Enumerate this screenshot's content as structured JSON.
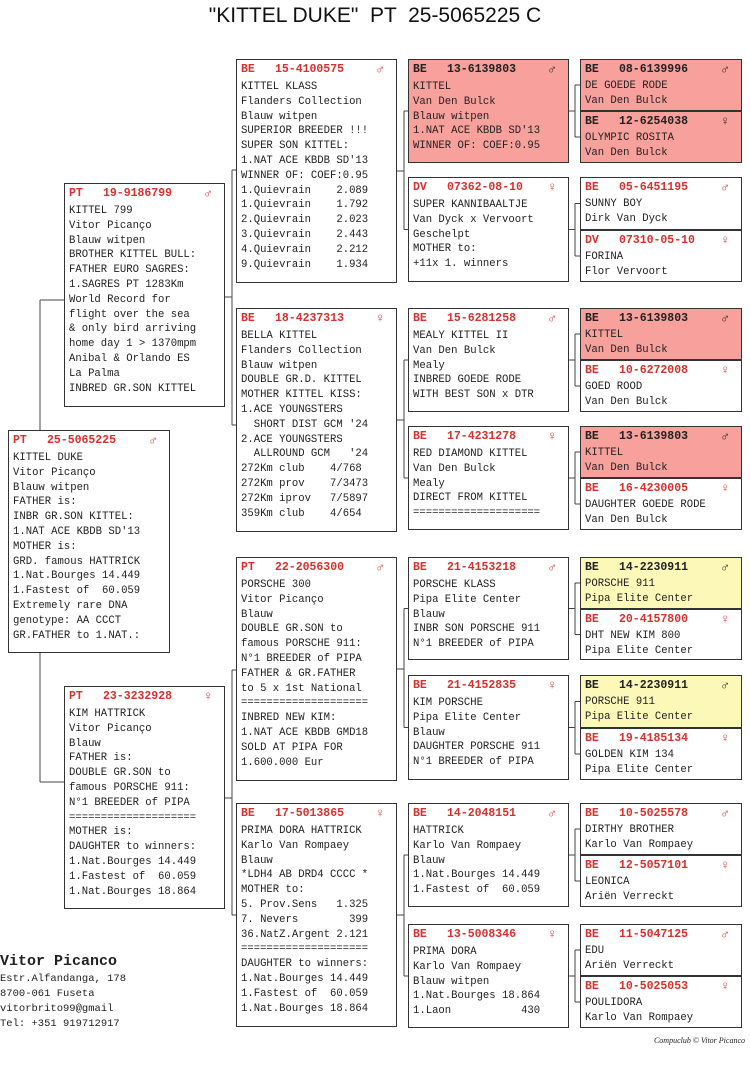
{
  "title": "\"KITTEL DUKE\"  PT  25-5065225 C",
  "colors": {
    "ring_red": "#d8302c",
    "pink_highlight": "#f7a09c",
    "yellow_highlight": "#fcf8b8"
  },
  "sex_icons": {
    "male": "♂",
    "female": "♀"
  },
  "pedigree": [
    {
      "country": "PT",
      "ring": "25-5065225",
      "sex": "male",
      "lines": [
        "KITTEL DUKE",
        "Vitor Picanço",
        "Blauw witpen",
        "FATHER is:",
        "INBR GR.SON KITTEL:",
        "1.NAT ACE KBDB SD'13",
        "MOTHER is:",
        "GRD. famous HATTRICK",
        "1.Nat.Bourges 14.449",
        "1.Fastest of  60.059",
        "Extremely rare DNA",
        "genotype: AA CCCT",
        "GR.FATHER to 1.NAT.:"
      ]
    },
    {
      "country": "PT",
      "ring": "19-9186799",
      "sex": "male",
      "lines": [
        "KITTEL 799",
        "Vitor Picanço",
        "Blauw witpen",
        "BROTHER KITTEL BULL:",
        "FATHER EURO SAGRES:",
        "1.SAGRES PT 1283Km",
        "World Record for",
        "flight over the sea",
        "& only bird arriving",
        "home day 1 > 1370mpm",
        "Anibal & Orlando ES",
        "La Palma",
        "INBRED GR.SON KITTEL"
      ]
    },
    {
      "country": "PT",
      "ring": "23-3232928",
      "sex": "female",
      "lines": [
        "KIM HATTRICK",
        "Vitor Picanço",
        "Blauw",
        "FATHER is:",
        "DOUBLE GR.SON to",
        "famous PORSCHE 911:",
        "N°1 BREEDER of PIPA",
        "====================",
        "MOTHER is:",
        "DAUGHTER to winners:",
        "1.Nat.Bourges 14.449",
        "1.Fastest of  60.059",
        "1.Nat.Bourges 18.864"
      ]
    },
    {
      "country": "BE",
      "ring": "15-4100575",
      "sex": "male",
      "lines": [
        "KITTEL KLASS",
        "Flanders Collection",
        "Blauw witpen",
        "SUPERIOR BREEDER !!!",
        "SUPER SON KITTEL:",
        "1.NAT ACE KBDB SD'13",
        "WINNER OF: COEF:0.95",
        "1.Quievrain    2.089",
        "1.Quievrain    1.792",
        "2.Quievrain    2.023",
        "3.Quievrain    2.443",
        "4.Quievrain    2.212",
        "9.Quievrain    1.934"
      ]
    },
    {
      "country": "BE",
      "ring": "18-4237313",
      "sex": "female",
      "lines": [
        "BELLA KITTEL",
        "Flanders Collection",
        "Blauw witpen",
        "DOUBLE GR.D. KITTEL",
        "MOTHER KITTEL KISS:",
        "1.ACE YOUNGSTERS",
        "  SHORT DIST GCM '24",
        "2.ACE YOUNGSTERS",
        "  ALLROUND GCM   '24",
        "272Km club    4/768",
        "272Km prov    7/3473",
        "272Km iprov   7/5897",
        "359Km club    4/654"
      ]
    },
    {
      "country": "PT",
      "ring": "22-2056300",
      "sex": "male",
      "lines": [
        "PORSCHE 300",
        "Vitor Picanço",
        "Blauw",
        "DOUBLE GR.SON to",
        "famous PORSCHE 911:",
        "N°1 BREEDER of PIPA",
        "FATHER & GR.FATHER",
        "to 5 x 1st National",
        "====================",
        "INBRED NEW KIM:",
        "1.NAT ACE KBDB GMD18",
        "SOLD AT PIPA FOR",
        "1.600.000 Eur"
      ]
    },
    {
      "country": "BE",
      "ring": "17-5013865",
      "sex": "female",
      "lines": [
        "PRIMA DORA HATTRICK",
        "Karlo Van Rompaey",
        "Blauw",
        "*LDH4 AB DRD4 CCCC *",
        "MOTHER to:",
        "5. Prov.Sens   1.325",
        "7. Nevers        399",
        "36.NatZ.Argent 2.121",
        "====================",
        "DAUGHTER to winners:",
        "1.Nat.Bourges 14.449",
        "1.Fastest of  60.059",
        "1.Nat.Bourges 18.864"
      ]
    },
    {
      "country": "BE",
      "ring": "13-6139803",
      "sex": "male",
      "highlight": "pink",
      "lines": [
        "KITTEL",
        "Van Den Bulck",
        "Blauw witpen",
        "1.NAT ACE KBDB SD'13",
        "WINNER OF: COEF:0.95"
      ]
    },
    {
      "country": "DV",
      "ring": "07362-08-10",
      "sex": "female",
      "lines": [
        "SUPER KANNIBAALTJE",
        "Van Dyck x Vervoort",
        "Geschelpt",
        "MOTHER to:",
        "+11x 1. winners"
      ]
    },
    {
      "country": "BE",
      "ring": "15-6281258",
      "sex": "male",
      "lines": [
        "MEALY KITTEL II",
        "Van Den Bulck",
        "Mealy",
        "INBRED GOEDE RODE",
        "WITH BEST SON x DTR"
      ]
    },
    {
      "country": "BE",
      "ring": "17-4231278",
      "sex": "female",
      "lines": [
        "RED DIAMOND KITTEL",
        "Van Den Bulck",
        "Mealy",
        "DIRECT FROM KITTEL",
        "===================="
      ]
    },
    {
      "country": "BE",
      "ring": "21-4153218",
      "sex": "male",
      "lines": [
        "PORSCHE KLASS",
        "Pipa Elite Center",
        "Blauw",
        "INBR SON PORSCHE 911",
        "N°1 BREEDER of PIPA"
      ]
    },
    {
      "country": "BE",
      "ring": "21-4152835",
      "sex": "female",
      "lines": [
        "KIM PORSCHE",
        "Pipa Elite Center",
        "Blauw",
        "DAUGHTER PORSCHE 911",
        "N°1 BREEDER of PIPA"
      ]
    },
    {
      "country": "BE",
      "ring": "14-2048151",
      "sex": "male",
      "lines": [
        "HATTRICK",
        "Karlo Van Rompaey",
        "Blauw",
        "1.Nat.Bourges 14.449",
        "1.Fastest of  60.059"
      ]
    },
    {
      "country": "BE",
      "ring": "13-5008346",
      "sex": "female",
      "lines": [
        "PRIMA DORA",
        "Karlo Van Rompaey",
        "Blauw witpen",
        "1.Nat.Bourges 18.864",
        "1.Laon           430"
      ]
    },
    {
      "country": "BE",
      "ring": "08-6139996",
      "sex": "male",
      "highlight": "pink",
      "lines": [
        "DE GOEDE RODE",
        "Van Den Bulck"
      ]
    },
    {
      "country": "BE",
      "ring": "12-6254038",
      "sex": "female",
      "highlight": "pink",
      "lines": [
        "OLYMPIC ROSITA",
        "Van Den Bulck"
      ]
    },
    {
      "country": "BE",
      "ring": "05-6451195",
      "sex": "male",
      "lines": [
        "SUNNY BOY",
        "Dirk Van Dyck"
      ]
    },
    {
      "country": "DV",
      "ring": "07310-05-10",
      "sex": "female",
      "lines": [
        "FORINA",
        "Flor Vervoort"
      ]
    },
    {
      "country": "BE",
      "ring": "13-6139803",
      "sex": "male",
      "highlight": "pink",
      "lines": [
        "KITTEL",
        "Van Den Bulck"
      ]
    },
    {
      "country": "BE",
      "ring": "10-6272008",
      "sex": "female",
      "lines": [
        "GOED ROOD",
        "Van Den Bulck"
      ]
    },
    {
      "country": "BE",
      "ring": "13-6139803",
      "sex": "male",
      "highlight": "pink",
      "lines": [
        "KITTEL",
        "Van Den Bulck"
      ]
    },
    {
      "country": "BE",
      "ring": "16-4230005",
      "sex": "female",
      "lines": [
        "DAUGHTER GOEDE RODE",
        "Van Den Bulck"
      ]
    },
    {
      "country": "BE",
      "ring": "14-2230911",
      "sex": "male",
      "highlight": "yellow",
      "lines": [
        "PORSCHE 911",
        "Pipa Elite Center"
      ]
    },
    {
      "country": "BE",
      "ring": "20-4157800",
      "sex": "female",
      "lines": [
        "DHT NEW KIM 800",
        "Pipa Elite Center"
      ]
    },
    {
      "country": "BE",
      "ring": "14-2230911",
      "sex": "male",
      "highlight": "yellow",
      "lines": [
        "PORSCHE 911",
        "Pipa Elite Center"
      ]
    },
    {
      "country": "BE",
      "ring": "19-4185134",
      "sex": "female",
      "lines": [
        "GOLDEN KIM 134",
        "Pipa Elite Center"
      ]
    },
    {
      "country": "BE",
      "ring": "10-5025578",
      "sex": "male",
      "lines": [
        "DIRTHY BROTHER",
        "Karlo Van Rompaey"
      ]
    },
    {
      "country": "BE",
      "ring": "12-5057101",
      "sex": "female",
      "lines": [
        "LEONICA",
        "Ariën Verreckt"
      ]
    },
    {
      "country": "BE",
      "ring": "11-5047125",
      "sex": "male",
      "lines": [
        "EDU",
        "Ariën Verreckt"
      ]
    },
    {
      "country": "BE",
      "ring": "10-5025053",
      "sex": "female",
      "lines": [
        "POULIDORA",
        "Karlo Van Rompaey"
      ]
    }
  ],
  "footer": {
    "breeder_name": "Vitor Picanco",
    "address_lines": [
      "Estr.Alfandanga, 178",
      "8700-061 Fuseta",
      "vitorbrito99@gmail",
      "Tel: +351 919712917"
    ],
    "copyright": "Compuclub © Vitor Picanco"
  }
}
